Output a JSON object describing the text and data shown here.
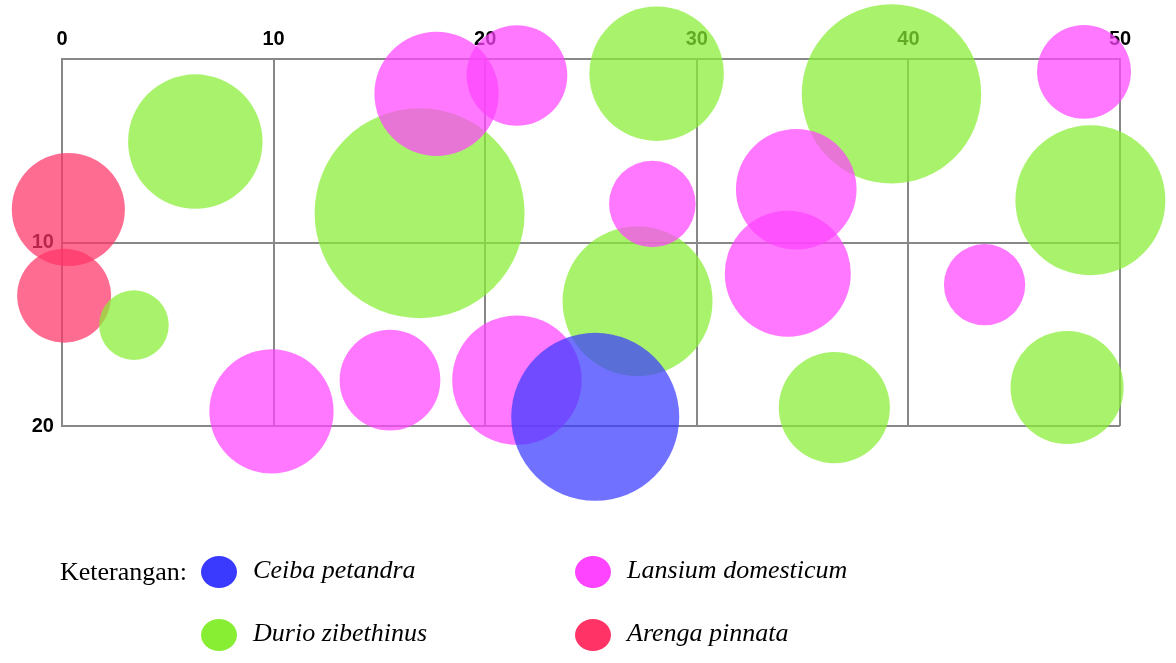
{
  "chart_data": {
    "type": "bubble",
    "legend_title": "Keterangan:",
    "legend": "bottom",
    "grid": true,
    "xlim": [
      0,
      50
    ],
    "xticks": [
      0,
      10,
      20,
      30,
      40,
      50
    ],
    "ylim": [
      20,
      0
    ],
    "yticks": [
      {
        "value": 0,
        "label": null
      },
      10,
      20
    ],
    "series": [
      {
        "name": "Ceiba petandra",
        "color": "#3a3aff",
        "x": [
          25.2
        ],
        "values": [
          19.5
        ],
        "sizes": [
          0.64
        ]
      },
      {
        "name": "Lansium domesticum",
        "color": "#ff44ff",
        "x": [
          17.7,
          21.5,
          48.3,
          27.9,
          34.7,
          34.3,
          43.6,
          15.5,
          21.5,
          9.9
        ],
        "values": [
          1.9,
          0.9,
          0.7,
          7.9,
          7.1,
          11.7,
          12.3,
          17.5,
          17.5,
          19.2
        ],
        "sizes": [
          0.35,
          0.23,
          0.2,
          0.17,
          0.33,
          0.36,
          0.15,
          0.23,
          0.38,
          0.35
        ]
      },
      {
        "name": "Durio zibethinus",
        "color": "#88ee33",
        "x": [
          6.3,
          3.4,
          16.9,
          28.1,
          39.2,
          48.6,
          27.2,
          36.5,
          47.5
        ],
        "values": [
          4.5,
          14.5,
          8.4,
          0.8,
          1.9,
          7.7,
          13.2,
          19,
          17.9
        ],
        "sizes": [
          0.41,
          0.11,
          1,
          0.41,
          0.73,
          0.51,
          0.51,
          0.28,
          0.29
        ]
      },
      {
        "name": "Arenga pinnata",
        "color": "#ff3366",
        "x": [
          0.3,
          0.1
        ],
        "values": [
          8.2,
          12.9
        ],
        "sizes": [
          0.29,
          0.2
        ]
      }
    ]
  }
}
